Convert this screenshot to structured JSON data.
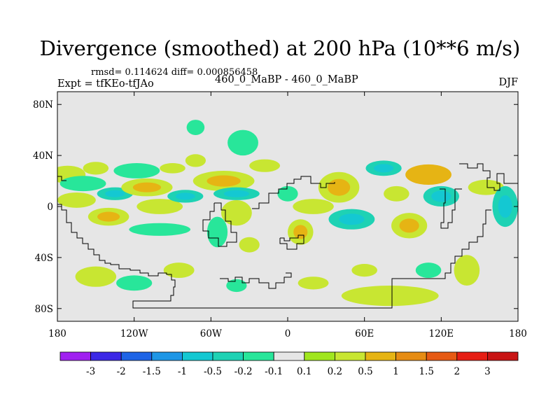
{
  "title": "Divergence (smoothed) at 200 hPa (10**6 m/s)",
  "stats": "rmsd= 0.114624 diff= 0.000856458",
  "expt": "Expt = tfKEo-tfJAo",
  "case": "460_0_MaBP - 460_0_MaBP",
  "season": "DJF",
  "colors": {
    "background": "#e6e6e6",
    "coastline": "#000000"
  },
  "map": {
    "lat_ticks": [
      "80N",
      "40N",
      "0",
      "40S",
      "80S"
    ],
    "lon_ticks": [
      "180",
      "120W",
      "60W",
      "0",
      "60E",
      "120E",
      "180"
    ]
  },
  "colorbar": {
    "labels": [
      "-3",
      "-2",
      "-1.5",
      "-1",
      "-0.5",
      "-0.2",
      "-0.1",
      "0.1",
      "0.2",
      "0.5",
      "1",
      "1.5",
      "2",
      "3"
    ],
    "colors": [
      "#a020f0",
      "#3c28e6",
      "#1e64e6",
      "#1e96e6",
      "#14c8d2",
      "#1ed2b4",
      "#28e69a",
      "#e6e6e6",
      "#a0e61e",
      "#c8e632",
      "#e6b414",
      "#e68c14",
      "#e65a14",
      "#e61e14",
      "#c81414"
    ]
  },
  "chart_data": {
    "type": "heatmap",
    "title": "Divergence (smoothed) at 200 hPa (10**6 m/s)",
    "xlabel": "",
    "ylabel": "",
    "xlim": [
      -180,
      180
    ],
    "ylim": [
      -90,
      90
    ],
    "levels": [
      -3,
      -2,
      -1.5,
      -1,
      -0.5,
      -0.2,
      -0.1,
      0.1,
      0.2,
      0.5,
      1,
      1.5,
      2,
      3
    ],
    "blobs": [
      {
        "lon": -172,
        "lat": 25,
        "rx": 14,
        "ry": 7,
        "v": 0.2
      },
      {
        "lon": -160,
        "lat": 18,
        "rx": 18,
        "ry": 6,
        "v": -0.2
      },
      {
        "lon": -165,
        "lat": 5,
        "rx": 15,
        "ry": 6,
        "v": 0.2
      },
      {
        "lon": -150,
        "lat": 30,
        "rx": 10,
        "ry": 5,
        "v": 0.2
      },
      {
        "lon": -140,
        "lat": -8,
        "rx": 16,
        "ry": 7,
        "v": 0.3
      },
      {
        "lon": -135,
        "lat": 10,
        "rx": 14,
        "ry": 5,
        "v": -0.3
      },
      {
        "lon": -118,
        "lat": 28,
        "rx": 18,
        "ry": 6,
        "v": -0.2
      },
      {
        "lon": -110,
        "lat": 15,
        "rx": 20,
        "ry": 7,
        "v": 0.3
      },
      {
        "lon": -100,
        "lat": 0,
        "rx": 18,
        "ry": 6,
        "v": 0.2
      },
      {
        "lon": -100,
        "lat": -18,
        "rx": 24,
        "ry": 5,
        "v": -0.2
      },
      {
        "lon": -90,
        "lat": 30,
        "rx": 10,
        "ry": 4,
        "v": 0.2
      },
      {
        "lon": -80,
        "lat": 8,
        "rx": 14,
        "ry": 5,
        "v": -0.4
      },
      {
        "lon": -72,
        "lat": 62,
        "rx": 7,
        "ry": 6,
        "v": -0.2
      },
      {
        "lon": -72,
        "lat": 36,
        "rx": 8,
        "ry": 5,
        "v": 0.2
      },
      {
        "lon": -50,
        "lat": 20,
        "rx": 24,
        "ry": 8,
        "v": 0.4
      },
      {
        "lon": -40,
        "lat": 10,
        "rx": 18,
        "ry": 5,
        "v": -0.3
      },
      {
        "lon": -35,
        "lat": 50,
        "rx": 12,
        "ry": 10,
        "v": -0.2
      },
      {
        "lon": -40,
        "lat": -5,
        "rx": 12,
        "ry": 10,
        "v": 0.2
      },
      {
        "lon": -55,
        "lat": -20,
        "rx": 8,
        "ry": 12,
        "v": -0.2
      },
      {
        "lon": -30,
        "lat": -30,
        "rx": 8,
        "ry": 6,
        "v": 0.2
      },
      {
        "lon": -18,
        "lat": 32,
        "rx": 12,
        "ry": 5,
        "v": 0.2
      },
      {
        "lon": 0,
        "lat": 10,
        "rx": 8,
        "ry": 6,
        "v": -0.2
      },
      {
        "lon": 10,
        "lat": -20,
        "rx": 10,
        "ry": 10,
        "v": 0.3
      },
      {
        "lon": 20,
        "lat": 0,
        "rx": 16,
        "ry": 6,
        "v": 0.2
      },
      {
        "lon": 40,
        "lat": 15,
        "rx": 16,
        "ry": 12,
        "v": 0.4
      },
      {
        "lon": 50,
        "lat": -10,
        "rx": 18,
        "ry": 8,
        "v": -0.3
      },
      {
        "lon": 75,
        "lat": 30,
        "rx": 14,
        "ry": 6,
        "v": -0.4
      },
      {
        "lon": 85,
        "lat": 10,
        "rx": 10,
        "ry": 6,
        "v": 0.2
      },
      {
        "lon": 95,
        "lat": -15,
        "rx": 14,
        "ry": 10,
        "v": 0.3
      },
      {
        "lon": 110,
        "lat": 25,
        "rx": 18,
        "ry": 8,
        "v": 0.5
      },
      {
        "lon": 120,
        "lat": 8,
        "rx": 14,
        "ry": 8,
        "v": -0.4
      },
      {
        "lon": 155,
        "lat": 15,
        "rx": 14,
        "ry": 6,
        "v": 0.2
      },
      {
        "lon": 170,
        "lat": 0,
        "rx": 10,
        "ry": 16,
        "v": -0.4
      },
      {
        "lon": 80,
        "lat": -70,
        "rx": 38,
        "ry": 8,
        "v": 0.2
      },
      {
        "lon": 60,
        "lat": -50,
        "rx": 10,
        "ry": 5,
        "v": 0.2
      },
      {
        "lon": 20,
        "lat": -60,
        "rx": 12,
        "ry": 5,
        "v": 0.2
      },
      {
        "lon": -120,
        "lat": -60,
        "rx": 14,
        "ry": 6,
        "v": -0.2
      },
      {
        "lon": -150,
        "lat": -55,
        "rx": 16,
        "ry": 8,
        "v": 0.2
      },
      {
        "lon": -85,
        "lat": -50,
        "rx": 12,
        "ry": 6,
        "v": 0.2
      },
      {
        "lon": -40,
        "lat": -62,
        "rx": 8,
        "ry": 5,
        "v": -0.2
      },
      {
        "lon": 110,
        "lat": -50,
        "rx": 10,
        "ry": 6,
        "v": -0.2
      },
      {
        "lon": 140,
        "lat": -50,
        "rx": 10,
        "ry": 12,
        "v": 0.2
      }
    ]
  }
}
